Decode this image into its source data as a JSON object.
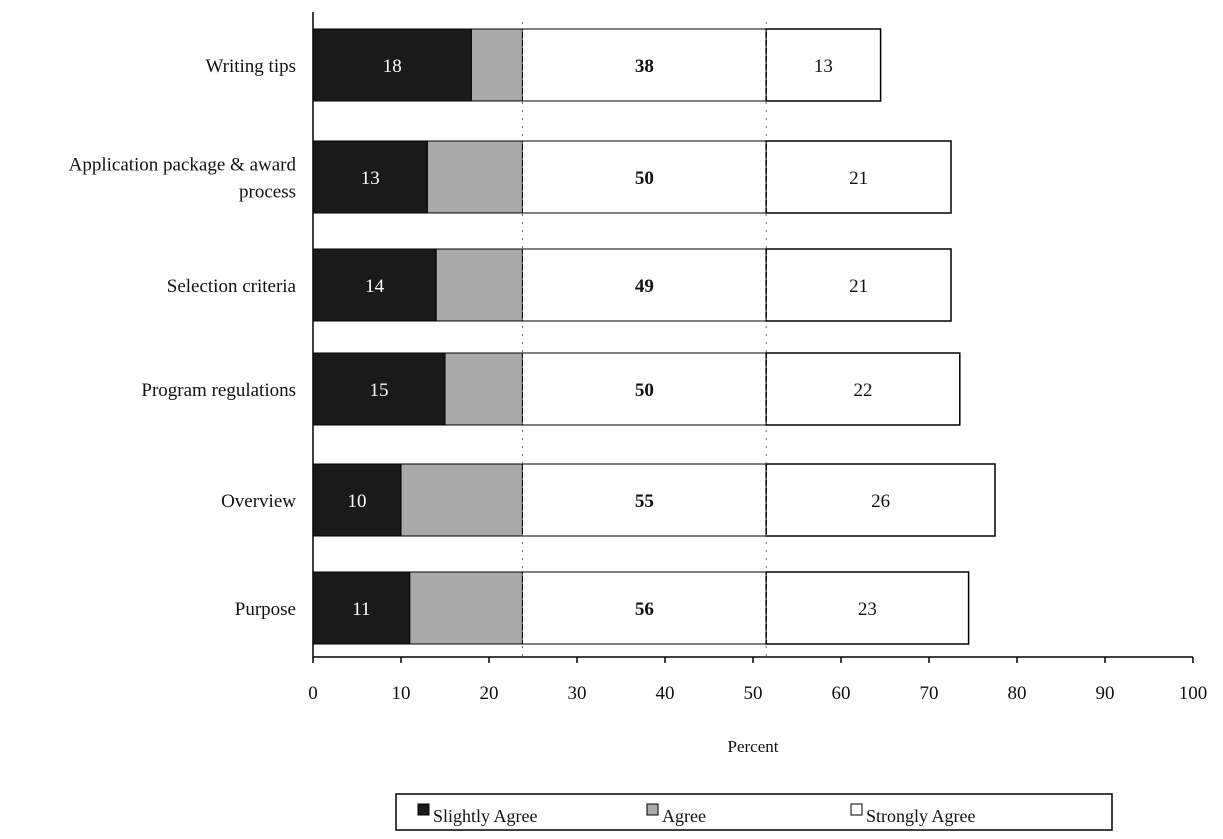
{
  "chart_data": {
    "type": "bar",
    "orientation": "horizontal",
    "stacked": true,
    "title": "",
    "xlabel": "Percent",
    "ylabel": "",
    "xlim": [
      0,
      100
    ],
    "x_ticks": [
      0,
      10,
      20,
      30,
      40,
      50,
      60,
      70,
      80,
      90,
      100
    ],
    "grid": false,
    "legend_position": "bottom",
    "categories": [
      "Writing tips",
      "Application package & award process",
      "Selection criteria",
      "Program regulations",
      "Overview",
      "Purpose"
    ],
    "series": [
      {
        "name": "Slightly Agree",
        "color": "#1a1a1a",
        "values": [
          18,
          13,
          14,
          15,
          10,
          11
        ]
      },
      {
        "name": "Agree",
        "color": "#a9a9a9",
        "values": [
          38,
          50,
          49,
          50,
          55,
          56
        ]
      },
      {
        "name": "Strongly Agree",
        "color": "#ffffff",
        "values": [
          13,
          21,
          21,
          22,
          26,
          23
        ]
      }
    ]
  }
}
